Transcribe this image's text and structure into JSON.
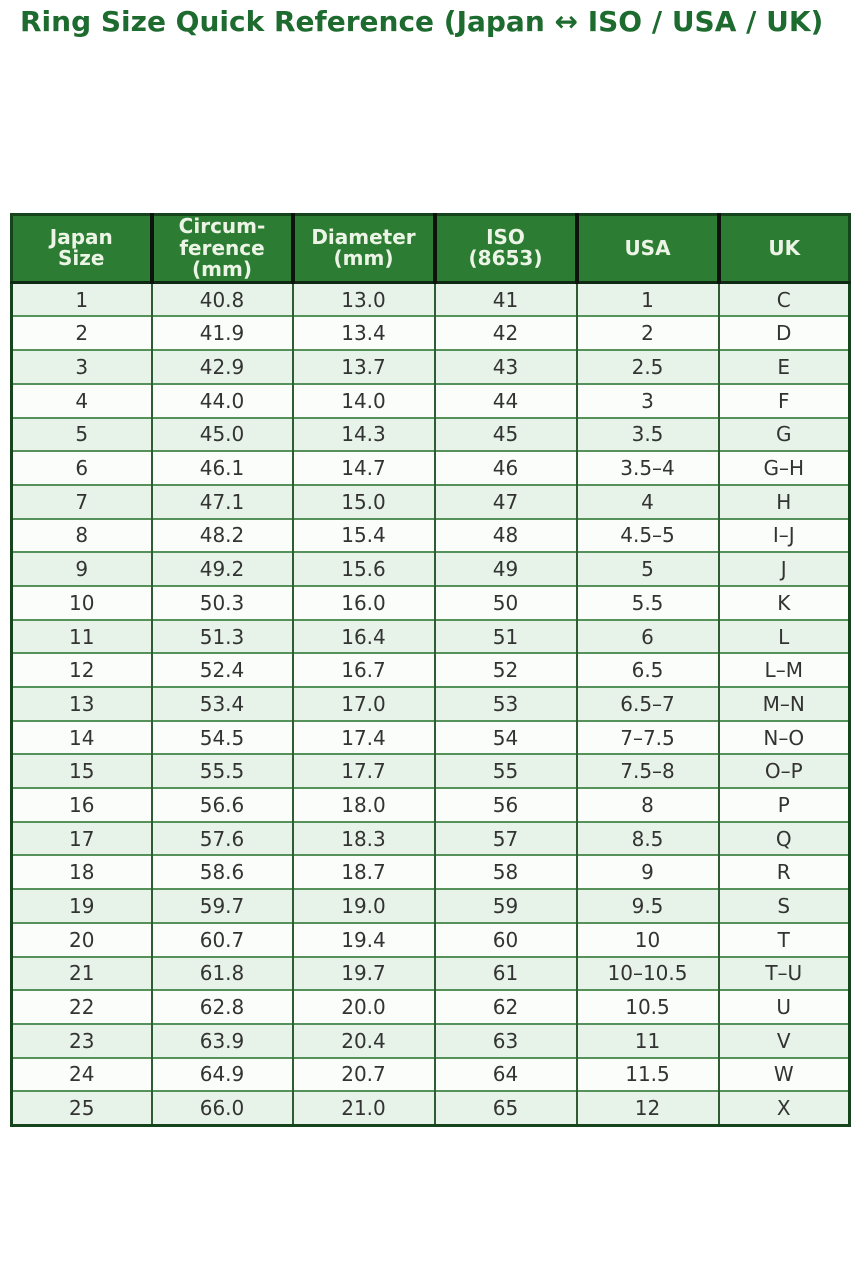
{
  "title": "Ring Size Quick Reference (Japan ↔ ISO / USA / UK)",
  "colors": {
    "title_green": "#1d6b2f",
    "header_bg": "#2d7c33",
    "header_text": "#ecf4e6",
    "row_alt_green": "#e7f3e8",
    "row_white": "#fbfdfb",
    "grid_horizontal": "#55925a",
    "grid_vertical": "#2e5c33",
    "outer_border": "#16441c"
  },
  "table": {
    "headers": [
      "Japan\nSize",
      "Circum-\nference\n(mm)",
      "Diameter\n(mm)",
      "ISO\n(8653)",
      "USA",
      "UK"
    ],
    "rows": [
      [
        "1",
        "40.8",
        "13.0",
        "41",
        "1",
        "C"
      ],
      [
        "2",
        "41.9",
        "13.4",
        "42",
        "2",
        "D"
      ],
      [
        "3",
        "42.9",
        "13.7",
        "43",
        "2.5",
        "E"
      ],
      [
        "4",
        "44.0",
        "14.0",
        "44",
        "3",
        "F"
      ],
      [
        "5",
        "45.0",
        "14.3",
        "45",
        "3.5",
        "G"
      ],
      [
        "6",
        "46.1",
        "14.7",
        "46",
        "3.5–4",
        "G–H"
      ],
      [
        "7",
        "47.1",
        "15.0",
        "47",
        "4",
        "H"
      ],
      [
        "8",
        "48.2",
        "15.4",
        "48",
        "4.5–5",
        "I–J"
      ],
      [
        "9",
        "49.2",
        "15.6",
        "49",
        "5",
        "J"
      ],
      [
        "10",
        "50.3",
        "16.0",
        "50",
        "5.5",
        "K"
      ],
      [
        "11",
        "51.3",
        "16.4",
        "51",
        "6",
        "L"
      ],
      [
        "12",
        "52.4",
        "16.7",
        "52",
        "6.5",
        "L–M"
      ],
      [
        "13",
        "53.4",
        "17.0",
        "53",
        "6.5–7",
        "M–N"
      ],
      [
        "14",
        "54.5",
        "17.4",
        "54",
        "7–7.5",
        "N–O"
      ],
      [
        "15",
        "55.5",
        "17.7",
        "55",
        "7.5–8",
        "O–P"
      ],
      [
        "16",
        "56.6",
        "18.0",
        "56",
        "8",
        "P"
      ],
      [
        "17",
        "57.6",
        "18.3",
        "57",
        "8.5",
        "Q"
      ],
      [
        "18",
        "58.6",
        "18.7",
        "58",
        "9",
        "R"
      ],
      [
        "19",
        "59.7",
        "19.0",
        "59",
        "9.5",
        "S"
      ],
      [
        "20",
        "60.7",
        "19.4",
        "60",
        "10",
        "T"
      ],
      [
        "21",
        "61.8",
        "19.7",
        "61",
        "10–10.5",
        "T–U"
      ],
      [
        "22",
        "62.8",
        "20.0",
        "62",
        "10.5",
        "U"
      ],
      [
        "23",
        "63.9",
        "20.4",
        "63",
        "11",
        "V"
      ],
      [
        "24",
        "64.9",
        "20.7",
        "64",
        "11.5",
        "W"
      ],
      [
        "25",
        "66.0",
        "21.0",
        "65",
        "12",
        "X"
      ]
    ]
  },
  "chart_data": {
    "type": "table",
    "title": "Ring Size Quick Reference (Japan ↔ ISO / USA / UK)",
    "columns": [
      "Japan Size",
      "Circumference (mm)",
      "Diameter (mm)",
      "ISO (8653)",
      "USA",
      "UK"
    ],
    "rows": [
      [
        "1",
        "40.8",
        "13.0",
        "41",
        "1",
        "C"
      ],
      [
        "2",
        "41.9",
        "13.4",
        "42",
        "2",
        "D"
      ],
      [
        "3",
        "42.9",
        "13.7",
        "43",
        "2.5",
        "E"
      ],
      [
        "4",
        "44.0",
        "14.0",
        "44",
        "3",
        "F"
      ],
      [
        "5",
        "45.0",
        "14.3",
        "45",
        "3.5",
        "G"
      ],
      [
        "6",
        "46.1",
        "14.7",
        "46",
        "3.5–4",
        "G–H"
      ],
      [
        "7",
        "47.1",
        "15.0",
        "47",
        "4",
        "H"
      ],
      [
        "8",
        "48.2",
        "15.4",
        "48",
        "4.5–5",
        "I–J"
      ],
      [
        "9",
        "49.2",
        "15.6",
        "49",
        "5",
        "J"
      ],
      [
        "10",
        "50.3",
        "16.0",
        "50",
        "5.5",
        "K"
      ],
      [
        "11",
        "51.3",
        "16.4",
        "51",
        "6",
        "L"
      ],
      [
        "12",
        "52.4",
        "16.7",
        "52",
        "6.5",
        "L–M"
      ],
      [
        "13",
        "53.4",
        "17.0",
        "53",
        "6.5–7",
        "M–N"
      ],
      [
        "14",
        "54.5",
        "17.4",
        "54",
        "7–7.5",
        "N–O"
      ],
      [
        "15",
        "55.5",
        "17.7",
        "55",
        "7.5–8",
        "O–P"
      ],
      [
        "16",
        "56.6",
        "18.0",
        "56",
        "8",
        "P"
      ],
      [
        "17",
        "57.6",
        "18.3",
        "57",
        "8.5",
        "Q"
      ],
      [
        "18",
        "58.6",
        "18.7",
        "58",
        "9",
        "R"
      ],
      [
        "19",
        "59.7",
        "19.0",
        "59",
        "9.5",
        "S"
      ],
      [
        "20",
        "60.7",
        "19.4",
        "60",
        "10",
        "T"
      ],
      [
        "21",
        "61.8",
        "19.7",
        "61",
        "10–10.5",
        "T–U"
      ],
      [
        "22",
        "62.8",
        "20.0",
        "62",
        "10.5",
        "U"
      ],
      [
        "23",
        "63.9",
        "20.4",
        "63",
        "11",
        "V"
      ],
      [
        "24",
        "64.9",
        "20.7",
        "64",
        "11.5",
        "W"
      ],
      [
        "25",
        "66.0",
        "21.0",
        "65",
        "12",
        "X"
      ]
    ]
  }
}
